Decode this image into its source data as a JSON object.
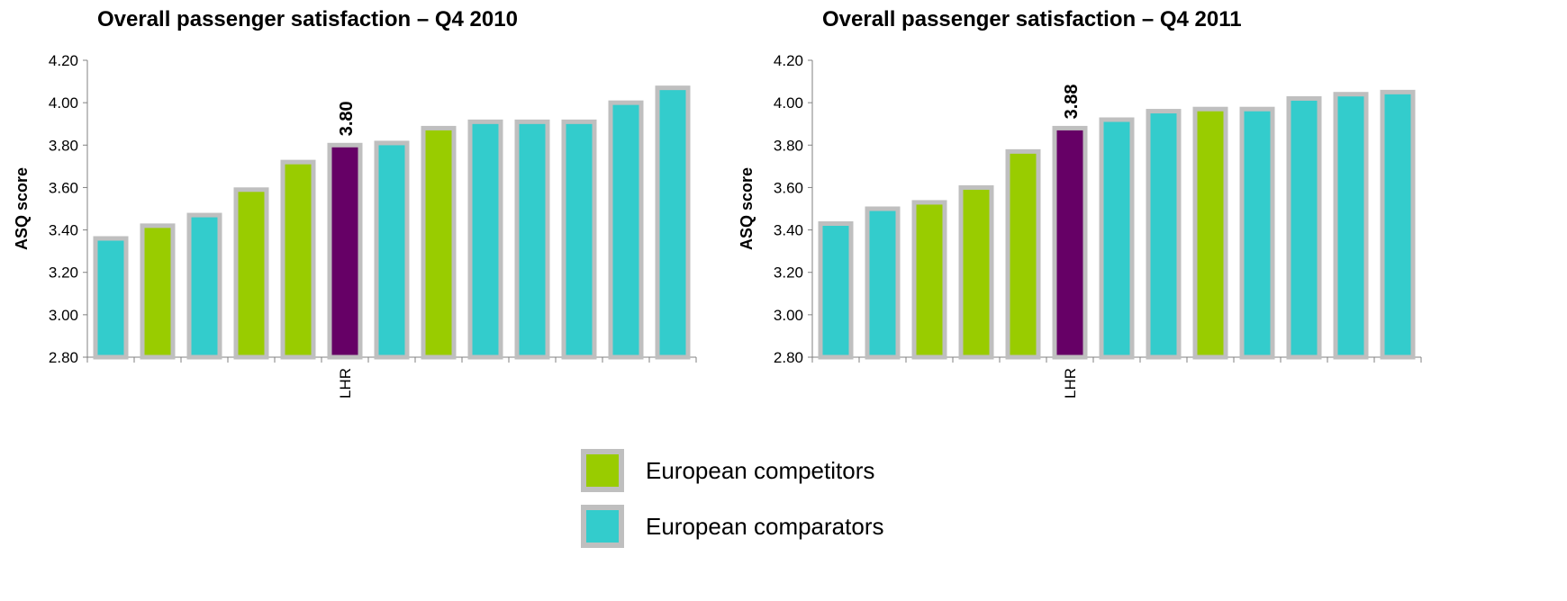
{
  "colors": {
    "competitor": "#99cc00",
    "comparator": "#33cccc",
    "lhr": "#660066",
    "bar_border": "#bfbfbf"
  },
  "chart_data": [
    {
      "type": "bar",
      "title": "Overall passenger satisfaction – Q4 2010",
      "ylabel": "ASQ score",
      "ylim": [
        2.8,
        4.2
      ],
      "yticks": [
        "2.80",
        "3.00",
        "3.20",
        "3.40",
        "3.60",
        "3.80",
        "4.00",
        "4.20"
      ],
      "categories": [
        "",
        "",
        "",
        "",
        "",
        "LHR",
        "",
        "",
        "",
        "",
        "",
        "",
        ""
      ],
      "values": [
        3.36,
        3.42,
        3.47,
        3.59,
        3.72,
        3.8,
        3.81,
        3.88,
        3.91,
        3.91,
        3.91,
        4.0,
        4.07
      ],
      "groups": [
        "comparator",
        "competitor",
        "comparator",
        "competitor",
        "competitor",
        "lhr",
        "comparator",
        "competitor",
        "comparator",
        "comparator",
        "comparator",
        "comparator",
        "comparator"
      ],
      "highlight_label": "3.80"
    },
    {
      "type": "bar",
      "title": "Overall passenger satisfaction – Q4 2011",
      "ylabel": "ASQ score",
      "ylim": [
        2.8,
        4.2
      ],
      "yticks": [
        "2.80",
        "3.00",
        "3.20",
        "3.40",
        "3.60",
        "3.80",
        "4.00",
        "4.20"
      ],
      "categories": [
        "",
        "",
        "",
        "",
        "",
        "LHR",
        "",
        "",
        "",
        "",
        "",
        "",
        ""
      ],
      "values": [
        3.43,
        3.5,
        3.53,
        3.6,
        3.77,
        3.88,
        3.92,
        3.96,
        3.97,
        3.97,
        4.02,
        4.04,
        4.05
      ],
      "groups": [
        "comparator",
        "comparator",
        "competitor",
        "competitor",
        "competitor",
        "lhr",
        "comparator",
        "comparator",
        "competitor",
        "comparator",
        "comparator",
        "comparator",
        "comparator"
      ],
      "highlight_label": "3.88"
    }
  ],
  "legend": [
    {
      "label": "European competitors",
      "group": "competitor"
    },
    {
      "label": "European comparators",
      "group": "comparator"
    }
  ]
}
